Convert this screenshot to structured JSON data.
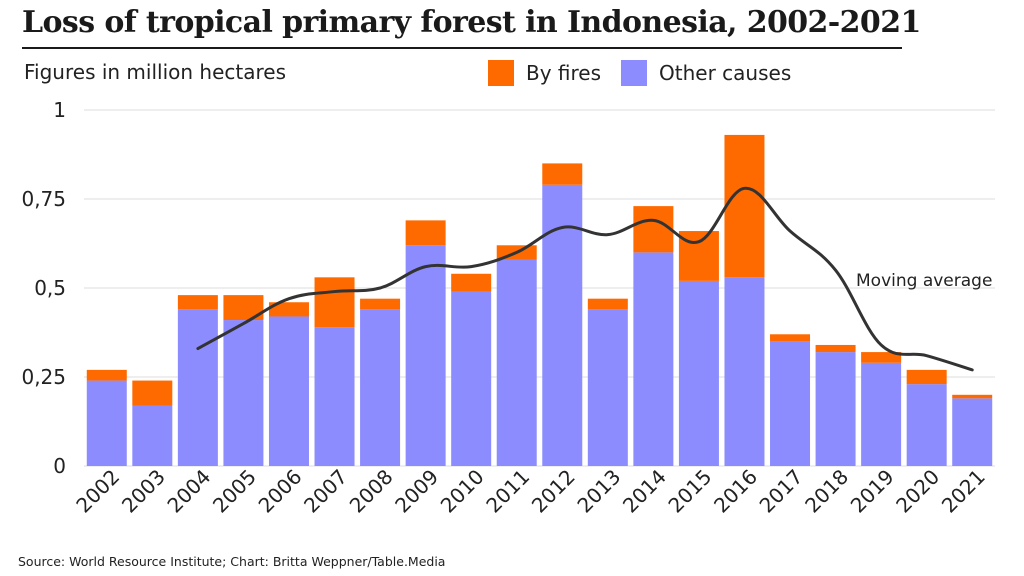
{
  "title": "Loss of tropical primary forest in Indonesia, 2002-2021",
  "subtitle": "Figures in million hectares",
  "source": "Source: World Resource Institute; Chart: Britta Weppner/Table.Media",
  "colors": {
    "fires": "#ff6a00",
    "other": "#8c8cff",
    "line": "#333333",
    "grid": "#dddddd"
  },
  "legend": [
    {
      "key": "fires",
      "label": "By fires"
    },
    {
      "key": "other",
      "label": "Other causes"
    }
  ],
  "chart_data": {
    "type": "bar",
    "stacked": true,
    "categories": [
      "2002",
      "2003",
      "2004",
      "2005",
      "2006",
      "2007",
      "2008",
      "2009",
      "2010",
      "2011",
      "2012",
      "2013",
      "2014",
      "2015",
      "2016",
      "2017",
      "2018",
      "2019",
      "2020",
      "2021"
    ],
    "series": [
      {
        "name": "Other causes",
        "values": [
          0.24,
          0.17,
          0.44,
          0.41,
          0.42,
          0.39,
          0.44,
          0.62,
          0.49,
          0.58,
          0.79,
          0.44,
          0.6,
          0.52,
          0.53,
          0.35,
          0.32,
          0.29,
          0.23,
          0.19
        ]
      },
      {
        "name": "By fires",
        "values": [
          0.03,
          0.07,
          0.04,
          0.07,
          0.04,
          0.14,
          0.03,
          0.07,
          0.05,
          0.04,
          0.06,
          0.03,
          0.13,
          0.14,
          0.4,
          0.02,
          0.02,
          0.03,
          0.04,
          0.01
        ]
      }
    ],
    "moving_average": {
      "name": "Moving average",
      "x": [
        "2004",
        "2005",
        "2006",
        "2007",
        "2008",
        "2009",
        "2010",
        "2011",
        "2012",
        "2013",
        "2014",
        "2015",
        "2016",
        "2017",
        "2018",
        "2019",
        "2020",
        "2021"
      ],
      "values": [
        0.33,
        0.4,
        0.47,
        0.49,
        0.5,
        0.56,
        0.56,
        0.6,
        0.67,
        0.65,
        0.69,
        0.63,
        0.78,
        0.66,
        0.55,
        0.34,
        0.31,
        0.27
      ]
    },
    "y_ticks": [
      {
        "value": 0,
        "label": "0"
      },
      {
        "value": 0.25,
        "label": "0,25"
      },
      {
        "value": 0.5,
        "label": "0,5"
      },
      {
        "value": 0.75,
        "label": "0,75"
      },
      {
        "value": 1,
        "label": "1"
      }
    ],
    "ylim": [
      0,
      1
    ],
    "grid": true,
    "legend_position": "top"
  }
}
